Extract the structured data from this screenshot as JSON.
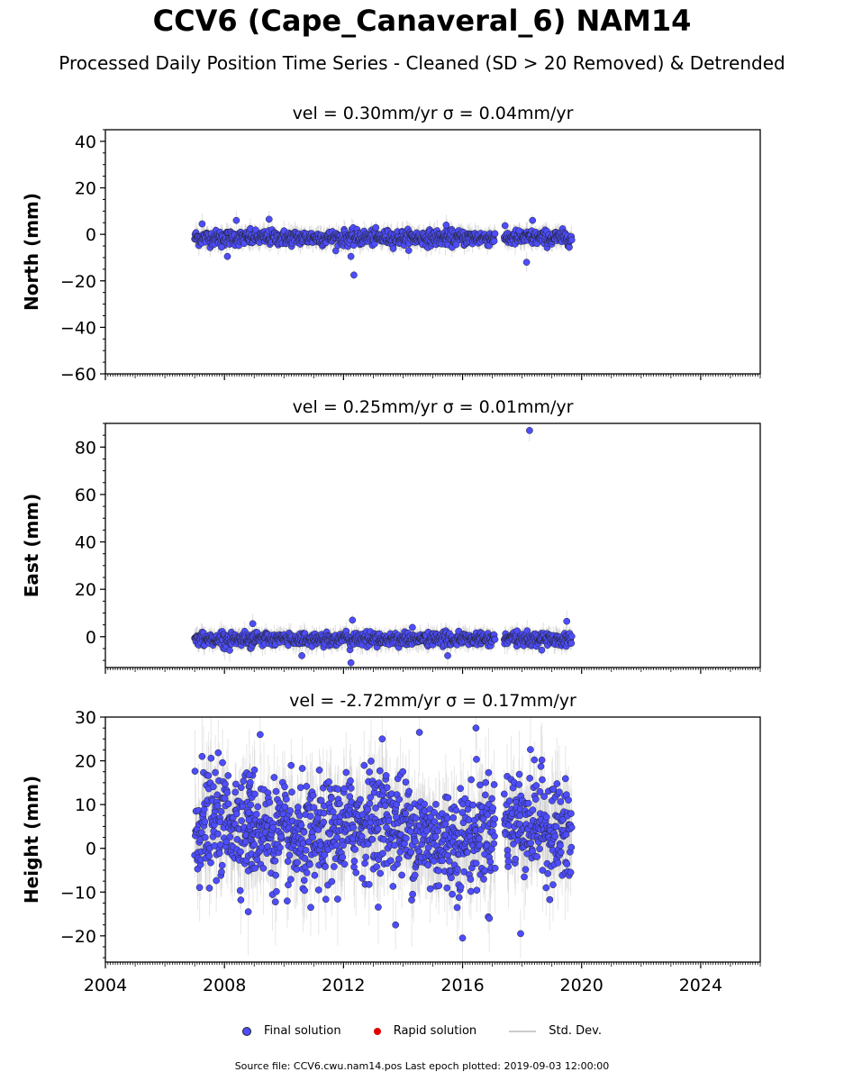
{
  "title": "CCV6 (Cape_Canaveral_6) NAM14",
  "subtitle": "Processed Daily Position Time Series - Cleaned (SD > 20 Removed) & Detrended",
  "legend": {
    "final": "Final solution",
    "rapid": "Rapid solution",
    "sd": "Std. Dev."
  },
  "footer": "Source file: CCV6.cwu.nam14.pos  Last epoch plotted: 2019-09-03 12:00:00",
  "colors": {
    "final_fill": "#4d4dff",
    "final_edge": "#222222",
    "rapid": "#e00000",
    "std_dev": "#bbbbbb"
  },
  "chart_data": [
    {
      "type": "scatter",
      "panel_title": "vel = 0.30mm/yr   σ = 0.04mm/yr",
      "ylabel": "North (mm)",
      "xlim": [
        2004,
        2026
      ],
      "ylim": [
        -60,
        45
      ],
      "yticks": [
        -60,
        -40,
        -20,
        0,
        20,
        40
      ],
      "xticks": [],
      "data_segments": [
        [
          2007.0,
          2008.95
        ],
        [
          2008.8,
          2017.1
        ],
        [
          2017.4,
          2019.67
        ]
      ],
      "scatter_sd": 1.6,
      "outliers": [
        {
          "x": 2007.25,
          "y": 4.5
        },
        {
          "x": 2007.9,
          "y": -5.5
        },
        {
          "x": 2008.1,
          "y": -9.5
        },
        {
          "x": 2008.4,
          "y": 6.0
        },
        {
          "x": 2009.5,
          "y": 6.5
        },
        {
          "x": 2012.25,
          "y": -9.5
        },
        {
          "x": 2012.35,
          "y": -17.5
        },
        {
          "x": 2015.45,
          "y": 4.0
        },
        {
          "x": 2018.15,
          "y": -12.0
        },
        {
          "x": 2018.35,
          "y": 6.0
        },
        {
          "x": 2017.9,
          "y": 1.5
        }
      ],
      "series": [
        {
          "name": "Final solution",
          "marker": "circle"
        }
      ]
    },
    {
      "type": "scatter",
      "panel_title": "vel = 0.25mm/yr   σ = 0.01mm/yr",
      "ylabel": "East (mm)",
      "xlim": [
        2004,
        2026
      ],
      "ylim": [
        -13,
        90
      ],
      "yticks": [
        0,
        20,
        40,
        60,
        80
      ],
      "xticks": [],
      "data_segments": [
        [
          2007.0,
          2008.95
        ],
        [
          2008.8,
          2017.1
        ],
        [
          2017.4,
          2019.67
        ]
      ],
      "scatter_sd": 1.4,
      "outliers": [
        {
          "x": 2018.25,
          "y": 87.0
        },
        {
          "x": 2012.25,
          "y": -11.0
        },
        {
          "x": 2010.6,
          "y": -8.0
        },
        {
          "x": 2012.3,
          "y": 7.0
        },
        {
          "x": 2015.5,
          "y": -8.0
        },
        {
          "x": 2019.5,
          "y": 6.5
        },
        {
          "x": 2008.95,
          "y": 5.5
        }
      ],
      "series": [
        {
          "name": "Final solution",
          "marker": "circle"
        }
      ]
    },
    {
      "type": "scatter",
      "panel_title": "vel = -2.72mm/yr   σ = 0.17mm/yr",
      "ylabel": "Height (mm)",
      "xlim": [
        2004,
        2026
      ],
      "ylim": [
        -26,
        30
      ],
      "yticks": [
        -20,
        -10,
        0,
        10,
        20,
        30
      ],
      "xticks": [
        2004,
        2008,
        2012,
        2016,
        2020,
        2024
      ],
      "data_segments": [
        [
          2007.0,
          2008.95
        ],
        [
          2008.8,
          2017.1
        ],
        [
          2017.4,
          2019.67
        ]
      ],
      "scatter_sd": 6.0,
      "outliers": [
        {
          "x": 2007.25,
          "y": 21.0
        },
        {
          "x": 2009.2,
          "y": 26.0
        },
        {
          "x": 2013.3,
          "y": 25.0
        },
        {
          "x": 2014.55,
          "y": 26.5
        },
        {
          "x": 2016.45,
          "y": 27.5
        },
        {
          "x": 2016.0,
          "y": -20.5
        },
        {
          "x": 2017.95,
          "y": -19.5
        },
        {
          "x": 2013.75,
          "y": -17.5
        },
        {
          "x": 2016.9,
          "y": -16.0
        },
        {
          "x": 2008.8,
          "y": -14.5
        },
        {
          "x": 2010.9,
          "y": -13.5
        }
      ],
      "series": [
        {
          "name": "Final solution",
          "marker": "circle"
        }
      ]
    }
  ]
}
